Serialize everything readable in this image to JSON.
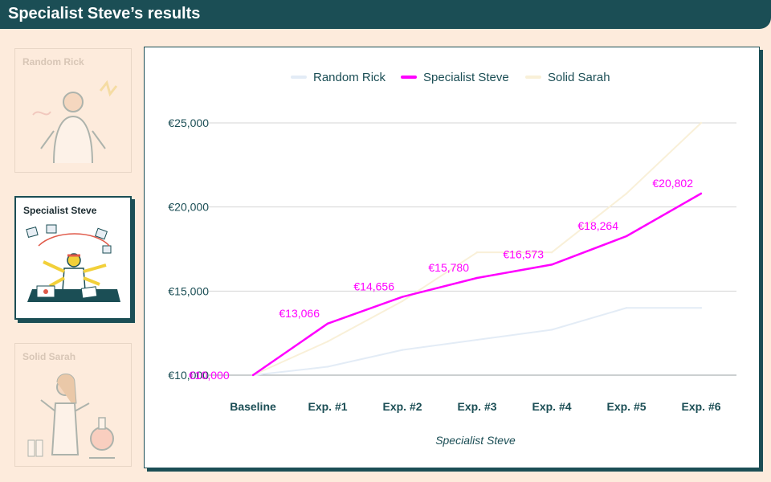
{
  "header": {
    "title": "Specialist Steve’s results"
  },
  "cards": [
    {
      "label": "Random Rick"
    },
    {
      "label": "Specialist Steve"
    },
    {
      "label": "Solid Sarah"
    }
  ],
  "colors": {
    "header_bg": "#1b4e55",
    "page_bg": "#fdebdc",
    "steve": "#ff00ff",
    "rick": "#e3ecf6",
    "sarah": "#f9f0d8",
    "axis_text": "#1b4e55"
  },
  "chart_data": {
    "type": "line",
    "categories": [
      "Baseline",
      "Exp. #1",
      "Exp. #2",
      "Exp. #3",
      "Exp. #4",
      "Exp. #5",
      "Exp. #6"
    ],
    "xlabel": "Specialist Steve",
    "ylabel": "",
    "ylim": [
      10000,
      25000
    ],
    "yticks": [
      "€10,000",
      "€15,000",
      "€20,000",
      "€25,000"
    ],
    "grid": true,
    "legend_position": "top",
    "series": [
      {
        "name": "Random Rick",
        "color": "#e3ecf6",
        "values": [
          10000,
          10500,
          11500,
          12100,
          12700,
          14000,
          14000
        ]
      },
      {
        "name": "Specialist Steve",
        "color": "#ff00ff",
        "values": [
          10000,
          13066,
          14656,
          15780,
          16573,
          18264,
          20802
        ],
        "labels": [
          "€10,000",
          "€13,066",
          "€14,656",
          "€15,780",
          "€16,573",
          "€18,264",
          "€20,802"
        ]
      },
      {
        "name": "Solid Sarah",
        "color": "#f9f0d8",
        "values": [
          10000,
          12000,
          14400,
          17300,
          17300,
          20800,
          25000
        ]
      }
    ]
  }
}
